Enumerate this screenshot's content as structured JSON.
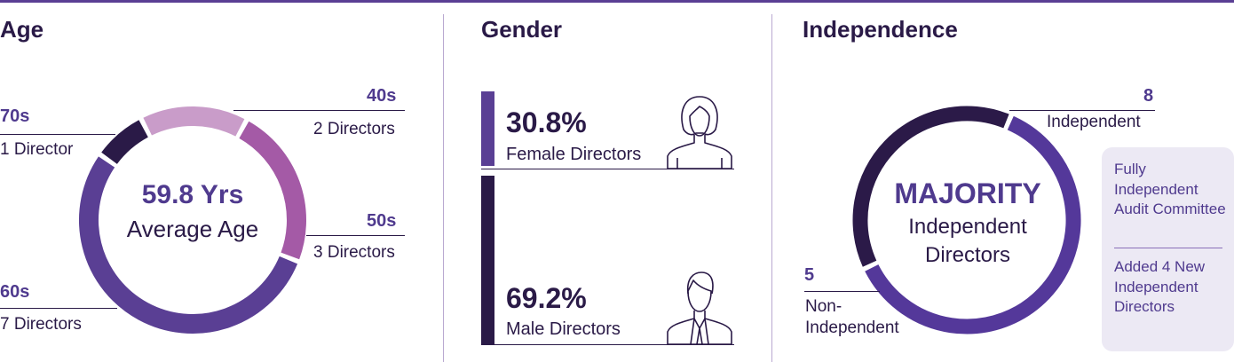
{
  "headings": {
    "age": "Age",
    "gender": "Gender",
    "independence": "Independence"
  },
  "colors": {
    "dark": "#2a1a47",
    "purple": "#5a3f94",
    "magenta": "#a45aa6",
    "lavender": "#c99cc9",
    "indep": "#54389a",
    "nonindep": "#2b1a48"
  },
  "chart_data": [
    {
      "type": "pie",
      "variant": "donut",
      "categories": [
        "40s",
        "50s",
        "60s",
        "70s"
      ],
      "values": [
        2,
        3,
        7,
        1
      ],
      "value_labels": [
        "2 Directors",
        "3 Directors",
        "7 Directors",
        "1 Director"
      ],
      "center": {
        "value": "59.8 Yrs",
        "label": "Average Age"
      }
    },
    {
      "type": "bar",
      "orientation": "vertical-stacked",
      "categories": [
        "Female Directors",
        "Male Directors"
      ],
      "values": [
        30.8,
        69.2
      ],
      "value_labels": [
        "30.8%",
        "69.2%"
      ],
      "icons": [
        "female-person-icon",
        "male-person-icon"
      ]
    },
    {
      "type": "pie",
      "variant": "donut",
      "categories": [
        "Independent",
        "Non-Independent"
      ],
      "values": [
        8,
        5
      ],
      "value_labels": [
        "8",
        "5"
      ],
      "center": {
        "value": "MAJORITY",
        "label": "Independent Directors"
      }
    }
  ],
  "independence_notes": {
    "note1": "Fully Independent Audit Committee",
    "note2": "Added 4 New Independent Directors"
  }
}
